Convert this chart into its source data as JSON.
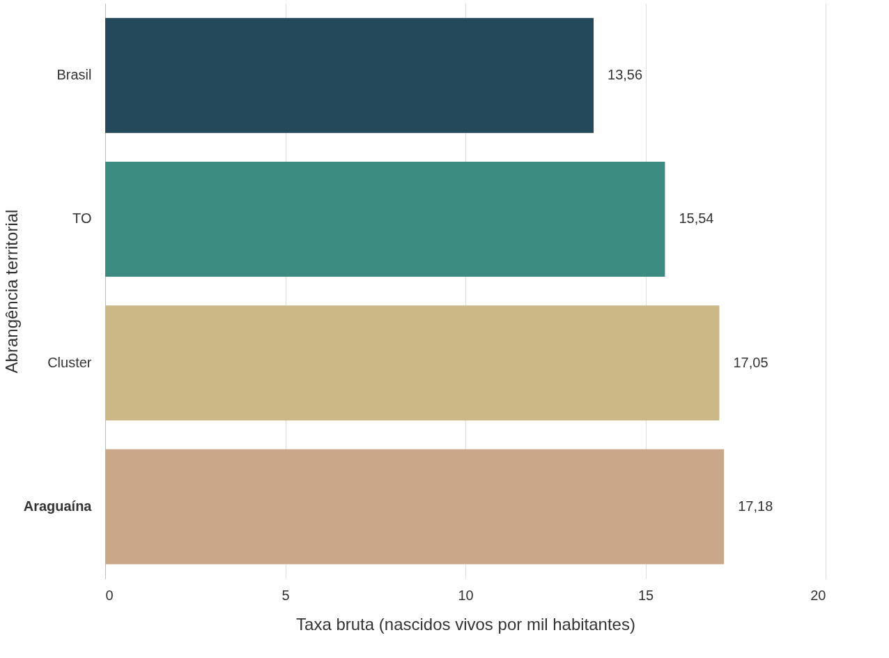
{
  "chart_data": {
    "type": "bar",
    "orientation": "horizontal",
    "xlabel": "Taxa bruta (nascidos vivos por mil habitantes)",
    "ylabel": "Abrangência territorial",
    "categories": [
      "Brasil",
      "TO",
      "Cluster",
      "Araguaína"
    ],
    "values": [
      13.56,
      15.54,
      17.05,
      17.18
    ],
    "value_labels": [
      "13,56",
      "15,54",
      "17,05",
      "17,18"
    ],
    "colors": [
      "#24495a",
      "#3c8b80",
      "#cbb886",
      "#cba789"
    ],
    "xlim": [
      0,
      20
    ],
    "xticks": [
      0,
      5,
      10,
      15,
      20
    ],
    "grid": "x",
    "legend": false
  }
}
